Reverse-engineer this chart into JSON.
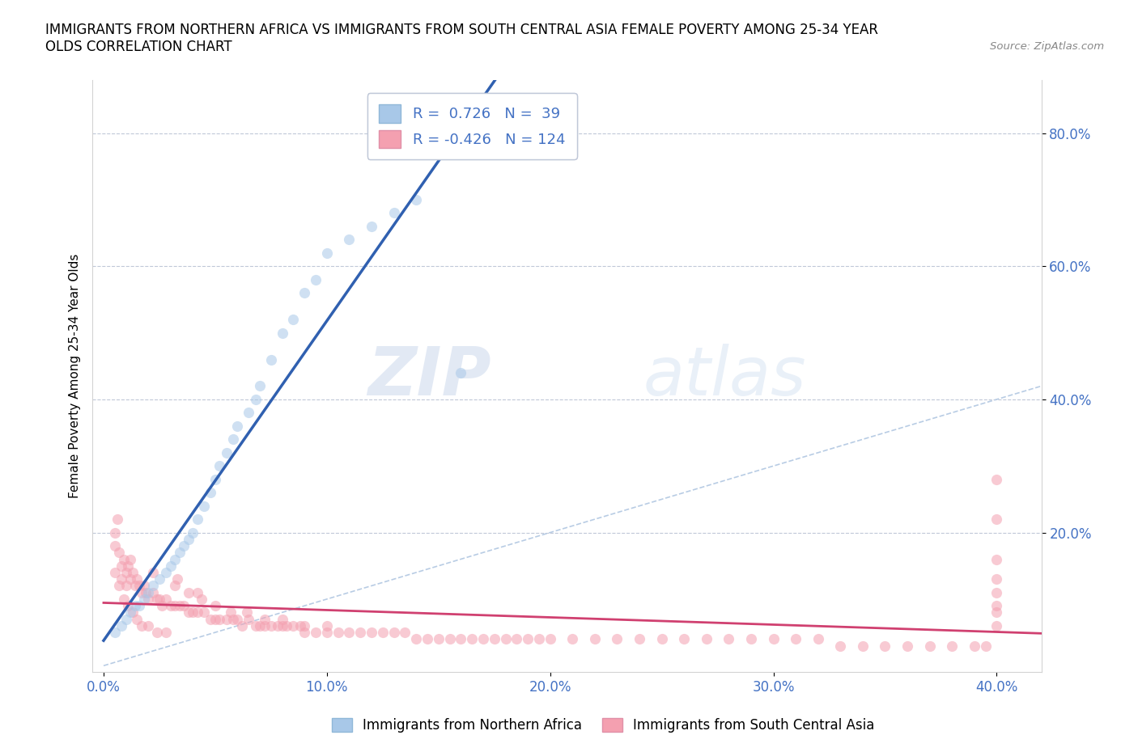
{
  "title": "IMMIGRANTS FROM NORTHERN AFRICA VS IMMIGRANTS FROM SOUTH CENTRAL ASIA FEMALE POVERTY AMONG 25-34 YEAR\nOLDS CORRELATION CHART",
  "source": "Source: ZipAtlas.com",
  "ylabel": "Female Poverty Among 25-34 Year Olds",
  "xlabel": "",
  "xlim": [
    -0.005,
    0.42
  ],
  "ylim": [
    -0.01,
    0.88
  ],
  "xticks": [
    0.0,
    0.1,
    0.2,
    0.3,
    0.4
  ],
  "yticks": [
    0.2,
    0.4,
    0.6,
    0.8
  ],
  "ytick_labels": [
    "20.0%",
    "40.0%",
    "60.0%",
    "80.0%"
  ],
  "xtick_labels": [
    "0.0%",
    "10.0%",
    "20.0%",
    "30.0%",
    "40.0%"
  ],
  "blue_R": 0.726,
  "blue_N": 39,
  "pink_R": -0.426,
  "pink_N": 124,
  "blue_color": "#a8c8e8",
  "pink_color": "#f4a0b0",
  "blue_line_color": "#3060b0",
  "pink_line_color": "#d04070",
  "diagonal_color": "#b8cce4",
  "watermark_zip": "ZIP",
  "watermark_atlas": "atlas",
  "legend1": "Immigrants from Northern Africa",
  "legend2": "Immigrants from South Central Asia",
  "blue_x": [
    0.005,
    0.008,
    0.01,
    0.012,
    0.014,
    0.016,
    0.018,
    0.02,
    0.022,
    0.025,
    0.028,
    0.03,
    0.032,
    0.034,
    0.036,
    0.038,
    0.04,
    0.042,
    0.045,
    0.048,
    0.05,
    0.052,
    0.055,
    0.058,
    0.06,
    0.065,
    0.068,
    0.07,
    0.075,
    0.08,
    0.085,
    0.09,
    0.095,
    0.1,
    0.11,
    0.12,
    0.13,
    0.14,
    0.16
  ],
  "blue_y": [
    0.05,
    0.06,
    0.07,
    0.08,
    0.09,
    0.09,
    0.1,
    0.11,
    0.12,
    0.13,
    0.14,
    0.15,
    0.16,
    0.17,
    0.18,
    0.19,
    0.2,
    0.22,
    0.24,
    0.26,
    0.28,
    0.3,
    0.32,
    0.34,
    0.36,
    0.38,
    0.4,
    0.42,
    0.46,
    0.5,
    0.52,
    0.56,
    0.58,
    0.62,
    0.64,
    0.66,
    0.68,
    0.7,
    0.44
  ],
  "pink_x": [
    0.005,
    0.005,
    0.006,
    0.007,
    0.008,
    0.008,
    0.009,
    0.01,
    0.01,
    0.011,
    0.012,
    0.013,
    0.014,
    0.015,
    0.016,
    0.017,
    0.018,
    0.019,
    0.02,
    0.022,
    0.024,
    0.025,
    0.026,
    0.028,
    0.03,
    0.032,
    0.034,
    0.036,
    0.038,
    0.04,
    0.042,
    0.045,
    0.048,
    0.05,
    0.052,
    0.055,
    0.058,
    0.06,
    0.062,
    0.065,
    0.068,
    0.07,
    0.072,
    0.075,
    0.078,
    0.08,
    0.082,
    0.085,
    0.088,
    0.09,
    0.095,
    0.1,
    0.105,
    0.11,
    0.115,
    0.12,
    0.125,
    0.13,
    0.135,
    0.14,
    0.145,
    0.15,
    0.155,
    0.16,
    0.165,
    0.17,
    0.175,
    0.18,
    0.185,
    0.19,
    0.195,
    0.2,
    0.21,
    0.22,
    0.23,
    0.24,
    0.25,
    0.26,
    0.27,
    0.28,
    0.29,
    0.3,
    0.31,
    0.32,
    0.33,
    0.34,
    0.35,
    0.36,
    0.37,
    0.38,
    0.39,
    0.395,
    0.4,
    0.4,
    0.4,
    0.4,
    0.4,
    0.4,
    0.4,
    0.4,
    0.005,
    0.007,
    0.009,
    0.011,
    0.013,
    0.015,
    0.017,
    0.02,
    0.024,
    0.028,
    0.033,
    0.038,
    0.044,
    0.05,
    0.057,
    0.064,
    0.072,
    0.08,
    0.09,
    0.1,
    0.012,
    0.022,
    0.032,
    0.042
  ],
  "pink_y": [
    0.18,
    0.2,
    0.22,
    0.17,
    0.15,
    0.13,
    0.16,
    0.14,
    0.12,
    0.15,
    0.13,
    0.14,
    0.12,
    0.13,
    0.12,
    0.11,
    0.12,
    0.11,
    0.1,
    0.11,
    0.1,
    0.1,
    0.09,
    0.1,
    0.09,
    0.09,
    0.09,
    0.09,
    0.08,
    0.08,
    0.08,
    0.08,
    0.07,
    0.07,
    0.07,
    0.07,
    0.07,
    0.07,
    0.06,
    0.07,
    0.06,
    0.06,
    0.06,
    0.06,
    0.06,
    0.06,
    0.06,
    0.06,
    0.06,
    0.05,
    0.05,
    0.05,
    0.05,
    0.05,
    0.05,
    0.05,
    0.05,
    0.05,
    0.05,
    0.04,
    0.04,
    0.04,
    0.04,
    0.04,
    0.04,
    0.04,
    0.04,
    0.04,
    0.04,
    0.04,
    0.04,
    0.04,
    0.04,
    0.04,
    0.04,
    0.04,
    0.04,
    0.04,
    0.04,
    0.04,
    0.04,
    0.04,
    0.04,
    0.04,
    0.03,
    0.03,
    0.03,
    0.03,
    0.03,
    0.03,
    0.03,
    0.03,
    0.28,
    0.22,
    0.16,
    0.13,
    0.11,
    0.09,
    0.08,
    0.06,
    0.14,
    0.12,
    0.1,
    0.09,
    0.08,
    0.07,
    0.06,
    0.06,
    0.05,
    0.05,
    0.13,
    0.11,
    0.1,
    0.09,
    0.08,
    0.08,
    0.07,
    0.07,
    0.06,
    0.06,
    0.16,
    0.14,
    0.12,
    0.11
  ]
}
